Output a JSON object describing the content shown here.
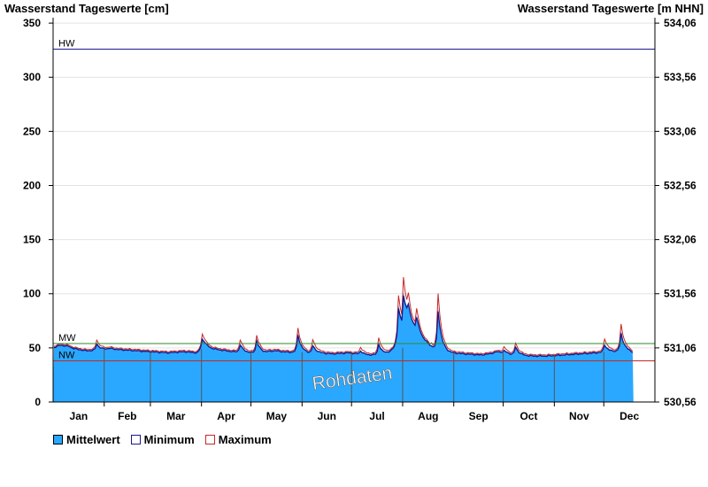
{
  "chart_data": {
    "type": "area",
    "title_left": "Wasserstand Tageswerte [cm]",
    "title_right": "Wasserstand Tageswerte [m NHN]",
    "ylim": [
      0,
      355
    ],
    "yticks": [
      0,
      50,
      100,
      150,
      200,
      250,
      300,
      350
    ],
    "right_ticks": [
      "530,56",
      "531,06",
      "531,56",
      "532,06",
      "532,56",
      "533,06",
      "533,56",
      "534,06"
    ],
    "months": [
      "Jan",
      "Feb",
      "Mar",
      "Apr",
      "May",
      "Jun",
      "Jul",
      "Aug",
      "Sep",
      "Oct",
      "Nov",
      "Dec"
    ],
    "month_days": [
      31,
      28,
      31,
      30,
      31,
      30,
      31,
      31,
      30,
      31,
      30,
      31
    ],
    "data_days": 352,
    "grid": true,
    "reference_lines": [
      {
        "label": "HW",
        "value": 326,
        "color": "#1a1a8c"
      },
      {
        "label": "MW",
        "value": 54,
        "color": "#2e8b2e"
      },
      {
        "label": "NW",
        "value": 38,
        "color": "#c62828"
      }
    ],
    "watermark": "Rohdaten",
    "baseline": [
      [
        1,
        51
      ],
      [
        5,
        53
      ],
      [
        10,
        52
      ],
      [
        13,
        50
      ],
      [
        20,
        48
      ],
      [
        28,
        48
      ],
      [
        35,
        50
      ],
      [
        40,
        49
      ],
      [
        50,
        48
      ],
      [
        60,
        47
      ],
      [
        70,
        46
      ],
      [
        80,
        47
      ],
      [
        88,
        46
      ],
      [
        92,
        52
      ],
      [
        96,
        50
      ],
      [
        100,
        49
      ],
      [
        110,
        47
      ],
      [
        120,
        46
      ],
      [
        128,
        46
      ],
      [
        135,
        48
      ],
      [
        140,
        47
      ],
      [
        150,
        46
      ],
      [
        160,
        46
      ],
      [
        170,
        45
      ],
      [
        180,
        46
      ],
      [
        190,
        44
      ],
      [
        200,
        44
      ],
      [
        205,
        47
      ],
      [
        210,
        55
      ],
      [
        215,
        75
      ],
      [
        220,
        68
      ],
      [
        225,
        58
      ],
      [
        230,
        52
      ],
      [
        233,
        48
      ],
      [
        240,
        46
      ],
      [
        250,
        45
      ],
      [
        260,
        44
      ],
      [
        265,
        45
      ],
      [
        270,
        47
      ],
      [
        275,
        46
      ],
      [
        280,
        44
      ],
      [
        290,
        43
      ],
      [
        300,
        43
      ],
      [
        310,
        44
      ],
      [
        320,
        45
      ],
      [
        330,
        46
      ],
      [
        340,
        47
      ],
      [
        345,
        48
      ],
      [
        350,
        47
      ],
      [
        352,
        46
      ]
    ],
    "events": [
      {
        "day": 27,
        "mean": 55,
        "max": 57
      },
      {
        "day": 91,
        "mean": 59,
        "max": 62
      },
      {
        "day": 114,
        "mean": 54,
        "max": 57
      },
      {
        "day": 124,
        "mean": 58,
        "max": 61
      },
      {
        "day": 149,
        "mean": 64,
        "max": 68
      },
      {
        "day": 158,
        "mean": 53,
        "max": 57
      },
      {
        "day": 187,
        "mean": 48,
        "max": 50
      },
      {
        "day": 198,
        "mean": 55,
        "max": 59
      },
      {
        "day": 210,
        "mean": 90,
        "max": 98
      },
      {
        "day": 213,
        "mean": 102,
        "max": 115
      },
      {
        "day": 216,
        "mean": 92,
        "max": 100
      },
      {
        "day": 221,
        "mean": 80,
        "max": 86
      },
      {
        "day": 230,
        "mean": 52,
        "max": 54
      },
      {
        "day": 234,
        "mean": 88,
        "max": 100
      },
      {
        "day": 274,
        "mean": 48,
        "max": 50
      },
      {
        "day": 281,
        "mean": 52,
        "max": 54
      },
      {
        "day": 335,
        "mean": 54,
        "max": 58
      },
      {
        "day": 345,
        "mean": 65,
        "max": 71
      }
    ]
  },
  "legend": {
    "items": [
      {
        "label": "Mittelwert",
        "fill": "#2aa8ff",
        "border": "#000000"
      },
      {
        "label": "Minimum",
        "fill": "#ffffff",
        "border": "#1a1a8c"
      },
      {
        "label": "Maximum",
        "fill": "#ffffff",
        "border": "#c62828"
      }
    ]
  },
  "colors": {
    "area": "#2aa8ff",
    "min_line": "#1a1a8c",
    "max_line": "#c62828",
    "grid": "#e3e3e3",
    "divider": "#555555"
  }
}
